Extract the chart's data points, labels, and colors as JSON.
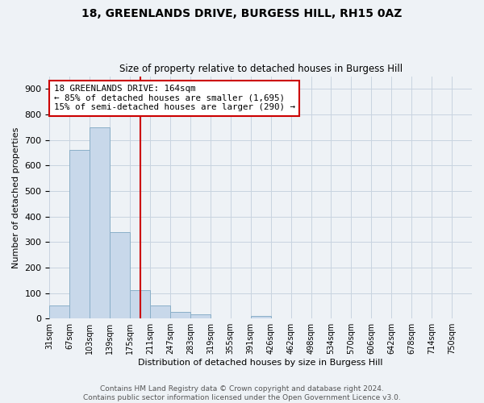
{
  "title1": "18, GREENLANDS DRIVE, BURGESS HILL, RH15 0AZ",
  "title2": "Size of property relative to detached houses in Burgess Hill",
  "xlabel": "Distribution of detached houses by size in Burgess Hill",
  "ylabel": "Number of detached properties",
  "bin_labels": [
    "31sqm",
    "67sqm",
    "103sqm",
    "139sqm",
    "175sqm",
    "211sqm",
    "247sqm",
    "283sqm",
    "319sqm",
    "355sqm",
    "391sqm",
    "426sqm",
    "462sqm",
    "498sqm",
    "534sqm",
    "570sqm",
    "606sqm",
    "642sqm",
    "678sqm",
    "714sqm",
    "750sqm"
  ],
  "bar_heights": [
    50,
    660,
    750,
    340,
    110,
    50,
    25,
    15,
    0,
    0,
    10,
    0,
    0,
    0,
    0,
    0,
    0,
    0,
    0,
    0,
    0
  ],
  "bar_color": "#c8d8ea",
  "bar_edge_color": "#8aafc8",
  "vline_color": "#cc0000",
  "annotation_text": "18 GREENLANDS DRIVE: 164sqm\n← 85% of detached houses are smaller (1,695)\n15% of semi-detached houses are larger (290) →",
  "annotation_box_color": "#ffffff",
  "annotation_box_edge_color": "#cc0000",
  "ylim": [
    0,
    950
  ],
  "yticks": [
    0,
    100,
    200,
    300,
    400,
    500,
    600,
    700,
    800,
    900
  ],
  "footer": "Contains HM Land Registry data © Crown copyright and database right 2024.\nContains public sector information licensed under the Open Government Licence v3.0.",
  "grid_color": "#c8d4e0",
  "bg_color": "#eef2f6"
}
